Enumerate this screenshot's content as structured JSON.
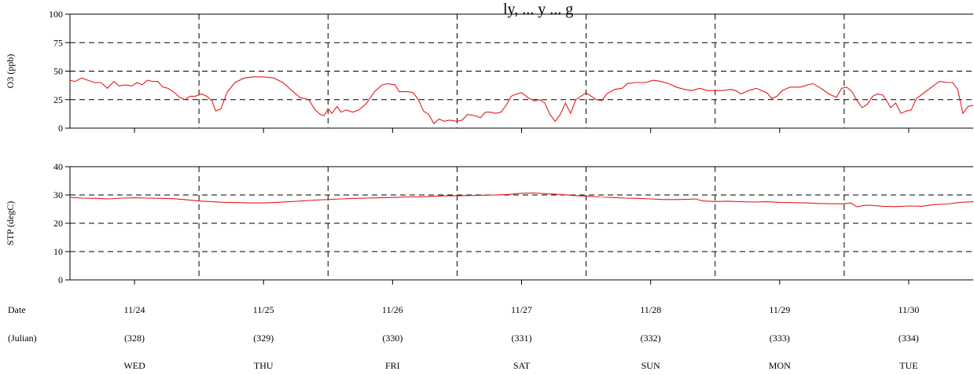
{
  "title_fragment": "ly, ... y ... g",
  "chart_data": [
    {
      "type": "line",
      "ylabel": "O3 (ppb)",
      "ylim": [
        0,
        100
      ],
      "yticks": [
        0,
        25,
        50,
        75,
        100
      ],
      "xlim": [
        0,
        7
      ],
      "grid": true,
      "line_color": "#e41a1c",
      "series": [
        {
          "points": [
            [
              0.0,
              42
            ],
            [
              0.04,
              41
            ],
            [
              0.09,
              44
            ],
            [
              0.14,
              42
            ],
            [
              0.19,
              40
            ],
            [
              0.24,
              40
            ],
            [
              0.29,
              35
            ],
            [
              0.34,
              41
            ],
            [
              0.38,
              37
            ],
            [
              0.43,
              38
            ],
            [
              0.48,
              37
            ],
            [
              0.52,
              40
            ],
            [
              0.56,
              38
            ],
            [
              0.6,
              42
            ],
            [
              0.64,
              41
            ],
            [
              0.68,
              41
            ],
            [
              0.72,
              36
            ],
            [
              0.76,
              35
            ],
            [
              0.8,
              32
            ],
            [
              0.85,
              27
            ],
            [
              0.89,
              25
            ],
            [
              0.93,
              28
            ],
            [
              0.97,
              28
            ],
            [
              1.02,
              30
            ],
            [
              1.06,
              28
            ],
            [
              1.1,
              24
            ],
            [
              1.13,
              15
            ],
            [
              1.17,
              17
            ],
            [
              1.22,
              32
            ],
            [
              1.28,
              40
            ],
            [
              1.35,
              44
            ],
            [
              1.42,
              45
            ],
            [
              1.5,
              45
            ],
            [
              1.58,
              44
            ],
            [
              1.65,
              40
            ],
            [
              1.72,
              33
            ],
            [
              1.78,
              27
            ],
            [
              1.85,
              25
            ],
            [
              1.9,
              16
            ],
            [
              1.94,
              12
            ],
            [
              1.97,
              11
            ],
            [
              2.0,
              17
            ],
            [
              2.03,
              13
            ],
            [
              2.07,
              19
            ],
            [
              2.1,
              14
            ],
            [
              2.14,
              16
            ],
            [
              2.19,
              14
            ],
            [
              2.24,
              16
            ],
            [
              2.3,
              22
            ],
            [
              2.36,
              32
            ],
            [
              2.42,
              38
            ],
            [
              2.46,
              39
            ],
            [
              2.52,
              38
            ],
            [
              2.55,
              32
            ],
            [
              2.62,
              32
            ],
            [
              2.66,
              31
            ],
            [
              2.7,
              25
            ],
            [
              2.74,
              15
            ],
            [
              2.78,
              12
            ],
            [
              2.82,
              4
            ],
            [
              2.86,
              8
            ],
            [
              2.9,
              6
            ],
            [
              2.94,
              7
            ],
            [
              3.0,
              6
            ],
            [
              3.04,
              7
            ],
            [
              3.08,
              12
            ],
            [
              3.14,
              11
            ],
            [
              3.18,
              9
            ],
            [
              3.22,
              14
            ],
            [
              3.26,
              14
            ],
            [
              3.3,
              13
            ],
            [
              3.34,
              14
            ],
            [
              3.38,
              20
            ],
            [
              3.42,
              28
            ],
            [
              3.46,
              30
            ],
            [
              3.5,
              31
            ],
            [
              3.56,
              26
            ],
            [
              3.6,
              24
            ],
            [
              3.64,
              25
            ],
            [
              3.68,
              22
            ],
            [
              3.72,
              12
            ],
            [
              3.76,
              6
            ],
            [
              3.8,
              12
            ],
            [
              3.84,
              22
            ],
            [
              3.88,
              13
            ],
            [
              3.92,
              25
            ],
            [
              3.96,
              28
            ],
            [
              4.0,
              31
            ],
            [
              4.04,
              28
            ],
            [
              4.08,
              25
            ],
            [
              4.12,
              24
            ],
            [
              4.16,
              30
            ],
            [
              4.22,
              34
            ],
            [
              4.28,
              35
            ],
            [
              4.32,
              39
            ],
            [
              4.38,
              40
            ],
            [
              4.46,
              40
            ],
            [
              4.52,
              42
            ],
            [
              4.58,
              41
            ],
            [
              4.64,
              39
            ],
            [
              4.7,
              36
            ],
            [
              4.76,
              34
            ],
            [
              4.82,
              33
            ],
            [
              4.88,
              35
            ],
            [
              4.94,
              33
            ],
            [
              5.0,
              33
            ],
            [
              5.06,
              33
            ],
            [
              5.12,
              34
            ],
            [
              5.16,
              33
            ],
            [
              5.2,
              30
            ],
            [
              5.26,
              33
            ],
            [
              5.32,
              35
            ],
            [
              5.36,
              33
            ],
            [
              5.4,
              31
            ],
            [
              5.44,
              26
            ],
            [
              5.48,
              28
            ],
            [
              5.52,
              33
            ],
            [
              5.58,
              36
            ],
            [
              5.66,
              36
            ],
            [
              5.72,
              38
            ],
            [
              5.76,
              39
            ],
            [
              5.82,
              35
            ],
            [
              5.88,
              30
            ],
            [
              5.94,
              27
            ],
            [
              5.98,
              35
            ],
            [
              6.02,
              36
            ],
            [
              6.06,
              32
            ],
            [
              6.1,
              24
            ],
            [
              6.14,
              18
            ],
            [
              6.18,
              21
            ],
            [
              6.22,
              28
            ],
            [
              6.26,
              30
            ],
            [
              6.3,
              29
            ],
            [
              6.34,
              22
            ],
            [
              6.36,
              18
            ],
            [
              6.4,
              22
            ],
            [
              6.44,
              13
            ],
            [
              6.48,
              15
            ],
            [
              6.52,
              16
            ],
            [
              6.56,
              26
            ],
            [
              6.62,
              31
            ],
            [
              6.7,
              38
            ],
            [
              6.74,
              41
            ],
            [
              6.8,
              40
            ],
            [
              6.84,
              40
            ],
            [
              6.88,
              34
            ],
            [
              6.92,
              13
            ],
            [
              6.96,
              19
            ],
            [
              7.0,
              20
            ]
          ]
        }
      ]
    },
    {
      "type": "line",
      "ylabel": "STP (degC)",
      "ylim": [
        0,
        40
      ],
      "yticks": [
        0,
        10,
        20,
        30,
        40
      ],
      "xlim": [
        0,
        7
      ],
      "grid": true,
      "line_color": "#e41a1c",
      "series": [
        {
          "points": [
            [
              0.0,
              29.1
            ],
            [
              0.1,
              28.9
            ],
            [
              0.2,
              28.8
            ],
            [
              0.3,
              28.6
            ],
            [
              0.4,
              28.9
            ],
            [
              0.5,
              29.0
            ],
            [
              0.6,
              28.9
            ],
            [
              0.7,
              28.8
            ],
            [
              0.8,
              28.7
            ],
            [
              0.9,
              28.3
            ],
            [
              1.0,
              27.9
            ],
            [
              1.1,
              27.6
            ],
            [
              1.2,
              27.4
            ],
            [
              1.3,
              27.3
            ],
            [
              1.4,
              27.2
            ],
            [
              1.5,
              27.2
            ],
            [
              1.6,
              27.4
            ],
            [
              1.7,
              27.6
            ],
            [
              1.8,
              27.9
            ],
            [
              1.9,
              28.2
            ],
            [
              2.0,
              28.4
            ],
            [
              2.1,
              28.6
            ],
            [
              2.2,
              28.8
            ],
            [
              2.3,
              28.9
            ],
            [
              2.4,
              29.0
            ],
            [
              2.5,
              29.1
            ],
            [
              2.6,
              29.3
            ],
            [
              2.7,
              29.3
            ],
            [
              2.8,
              29.5
            ],
            [
              2.9,
              29.7
            ],
            [
              3.0,
              29.7
            ],
            [
              3.1,
              29.8
            ],
            [
              3.2,
              29.9
            ],
            [
              3.3,
              30.0
            ],
            [
              3.4,
              30.2
            ],
            [
              3.5,
              30.6
            ],
            [
              3.6,
              30.7
            ],
            [
              3.7,
              30.4
            ],
            [
              3.8,
              30.2
            ],
            [
              3.9,
              29.8
            ],
            [
              4.0,
              29.6
            ],
            [
              4.1,
              29.3
            ],
            [
              4.2,
              29.1
            ],
            [
              4.3,
              28.9
            ],
            [
              4.4,
              28.8
            ],
            [
              4.5,
              28.6
            ],
            [
              4.6,
              28.4
            ],
            [
              4.7,
              28.4
            ],
            [
              4.8,
              28.5
            ],
            [
              4.85,
              28.6
            ],
            [
              4.9,
              27.9
            ],
            [
              5.0,
              27.7
            ],
            [
              5.1,
              27.8
            ],
            [
              5.2,
              27.6
            ],
            [
              5.3,
              27.5
            ],
            [
              5.4,
              27.6
            ],
            [
              5.5,
              27.4
            ],
            [
              5.6,
              27.3
            ],
            [
              5.7,
              27.2
            ],
            [
              5.8,
              27.0
            ],
            [
              5.9,
              26.9
            ],
            [
              6.0,
              26.9
            ],
            [
              6.05,
              27.2
            ],
            [
              6.1,
              25.8
            ],
            [
              6.15,
              26.3
            ],
            [
              6.2,
              26.4
            ],
            [
              6.3,
              26.0
            ],
            [
              6.4,
              25.9
            ],
            [
              6.5,
              26.1
            ],
            [
              6.6,
              26.0
            ],
            [
              6.7,
              26.6
            ],
            [
              6.8,
              26.8
            ],
            [
              6.9,
              27.4
            ],
            [
              7.0,
              27.6
            ]
          ]
        }
      ]
    }
  ],
  "footer": {
    "row_labels": [
      "Date",
      "(Julian)"
    ],
    "days": [
      {
        "date": "11/24",
        "julian": "(328)",
        "weekday": "WED"
      },
      {
        "date": "11/25",
        "julian": "(329)",
        "weekday": "THU"
      },
      {
        "date": "11/26",
        "julian": "(330)",
        "weekday": "FRI"
      },
      {
        "date": "11/27",
        "julian": "(331)",
        "weekday": "SAT"
      },
      {
        "date": "11/28",
        "julian": "(332)",
        "weekday": "SUN"
      },
      {
        "date": "11/29",
        "julian": "(333)",
        "weekday": "MON"
      },
      {
        "date": "11/30",
        "julian": "(334)",
        "weekday": "TUE"
      }
    ]
  }
}
